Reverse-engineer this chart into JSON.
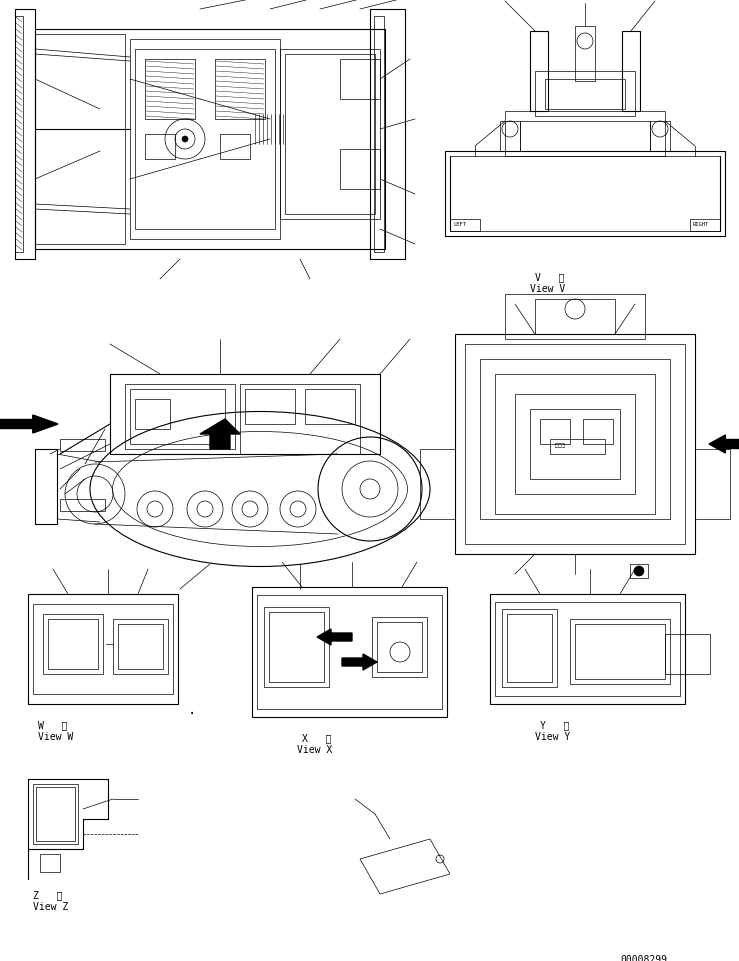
{
  "bg_color": "#ffffff",
  "fig_width": 7.39,
  "fig_height": 9.62,
  "dpi": 100,
  "part_number": "00008299",
  "view_V_label1": "V   視",
  "view_V_label2": "View V",
  "view_W_label1": "W   視",
  "view_W_label2": "View W",
  "view_X_label1": "X   視",
  "view_X_label2": "View X",
  "view_Y_label1": "Y   視",
  "view_Y_label2": "View Y",
  "view_Z_label1": "Z   視",
  "view_Z_label2": "View Z"
}
